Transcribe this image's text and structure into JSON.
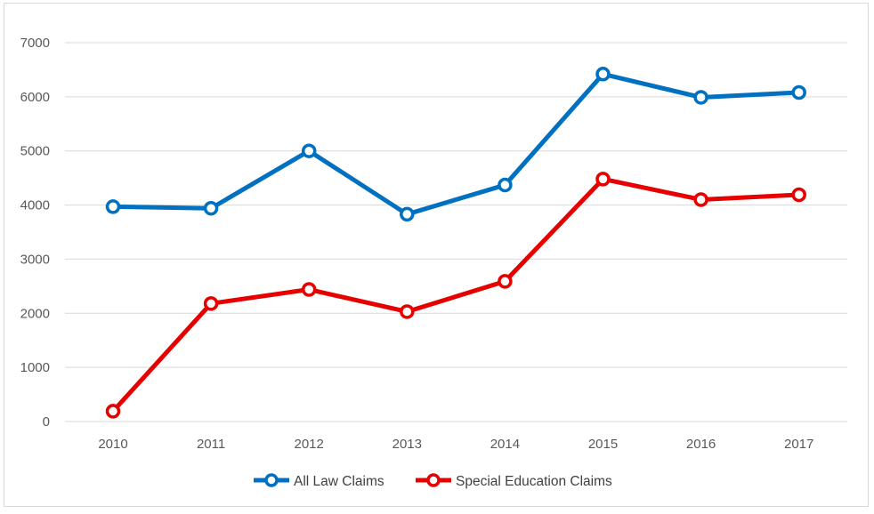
{
  "chart_data": {
    "type": "line",
    "categories": [
      "2010",
      "2011",
      "2012",
      "2013",
      "2014",
      "2015",
      "2016",
      "2017"
    ],
    "ylim": [
      0,
      7000
    ],
    "yticks": [
      0,
      1000,
      2000,
      3000,
      4000,
      5000,
      6000,
      7000
    ],
    "grid": true,
    "legend_position": "bottom",
    "series": [
      {
        "name": "All Law Claims",
        "color": "#0070c0",
        "values": [
          3970,
          3940,
          5000,
          3830,
          4370,
          6420,
          5990,
          6080
        ]
      },
      {
        "name": "Special Education Claims",
        "color": "#e60000",
        "values": [
          190,
          2180,
          2440,
          2030,
          2590,
          4480,
          4100,
          4190
        ]
      }
    ]
  }
}
